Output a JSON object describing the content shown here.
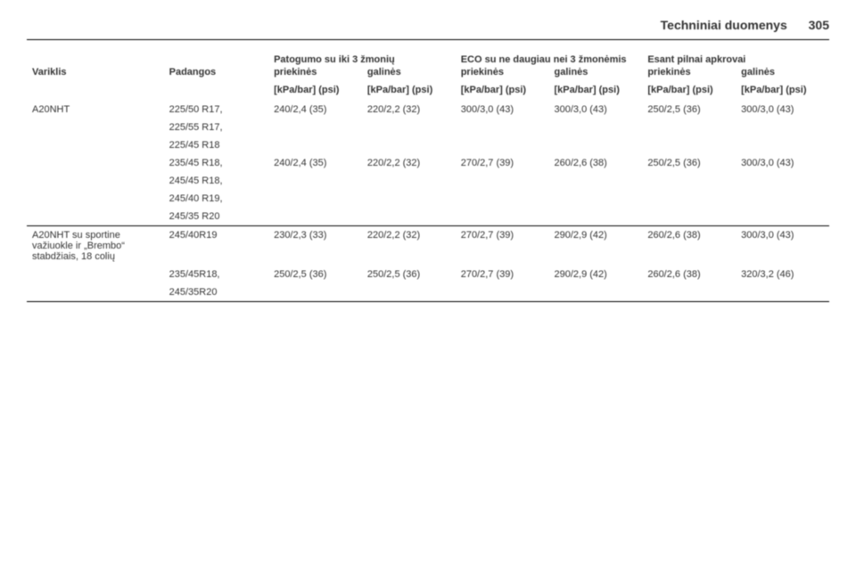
{
  "header": {
    "title": "Techniniai duomenys",
    "page": "305"
  },
  "table": {
    "groupHeaders": {
      "g1": "Patogumo su iki 3 žmonių",
      "g2": "ECO su ne daugiau nei 3 žmonėmis",
      "g3": "Esant pilnai apkrovai"
    },
    "colHeaders": {
      "c1": "Variklis",
      "c2": "Padangos",
      "c3": "priekinės",
      "c4": "galinės",
      "c5": "priekinės",
      "c6": "galinės",
      "c7": "priekinės",
      "c8": "galinės"
    },
    "unitRow": {
      "u": "[kPa/bar] (psi)"
    },
    "rows": [
      {
        "engine": "A20NHT",
        "tyre": "225/50 R17,",
        "v1": "240/2,4 (35)",
        "v2": "220/2,2 (32)",
        "v3": "300/3,0 (43)",
        "v4": "300/3,0 (43)",
        "v5": "250/2,5 (36)",
        "v6": "300/3,0 (43)"
      },
      {
        "tyre": "225/55 R17,"
      },
      {
        "tyre": "225/45 R18"
      },
      {
        "tyre": "235/45 R18,",
        "v1": "240/2,4 (35)",
        "v2": "220/2,2 (32)",
        "v3": "270/2,7 (39)",
        "v4": "260/2,6 (38)",
        "v5": "250/2,5 (36)",
        "v6": "300/3,0 (43)"
      },
      {
        "tyre": "245/45 R18,"
      },
      {
        "tyre": "245/40 R19,"
      },
      {
        "tyre": "245/35 R20"
      },
      {
        "sep": true,
        "engine": "A20NHT su sportine važiuokle ir „Brembo“ stabdžiais, 18 colių",
        "tyre": "245/40R19",
        "v1": "230/2,3 (33)",
        "v2": "220/2,2 (32)",
        "v3": "270/2,7 (39)",
        "v4": "290/2,9 (42)",
        "v5": "260/2,6 (38)",
        "v6": "300/3,0 (43)"
      },
      {
        "tyre": "235/45R18,",
        "v1": "250/2,5 (36)",
        "v2": "250/2,5 (36)",
        "v3": "270/2,7 (39)",
        "v4": "290/2,9 (42)",
        "v5": "260/2,6 (38)",
        "v6": "320/3,2 (46)"
      },
      {
        "tyre": "245/35R20",
        "bottom": true
      }
    ]
  }
}
